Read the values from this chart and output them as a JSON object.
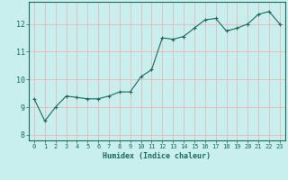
{
  "xlabel": "Humidex (Indice chaleur)",
  "ylabel": "",
  "background_color": "#c8eeee",
  "grid_color": "#e8b8b8",
  "line_color": "#1a6b5a",
  "marker_color": "#1a6b5a",
  "xlim": [
    -0.5,
    23.5
  ],
  "ylim": [
    7.8,
    12.8
  ],
  "yticks": [
    8,
    9,
    10,
    11,
    12
  ],
  "xticks": [
    0,
    1,
    2,
    3,
    4,
    5,
    6,
    7,
    8,
    9,
    10,
    11,
    12,
    13,
    14,
    15,
    16,
    17,
    18,
    19,
    20,
    21,
    22,
    23
  ],
  "x": [
    0,
    1,
    2,
    3,
    4,
    5,
    6,
    7,
    8,
    9,
    10,
    11,
    12,
    13,
    14,
    15,
    16,
    17,
    18,
    19,
    20,
    21,
    22,
    23
  ],
  "y": [
    9.3,
    8.5,
    9.0,
    9.4,
    9.35,
    9.3,
    9.3,
    9.4,
    9.55,
    9.55,
    10.1,
    10.35,
    11.5,
    11.45,
    11.55,
    11.85,
    12.15,
    12.2,
    11.75,
    11.85,
    12.0,
    12.35,
    12.45,
    12.0
  ]
}
